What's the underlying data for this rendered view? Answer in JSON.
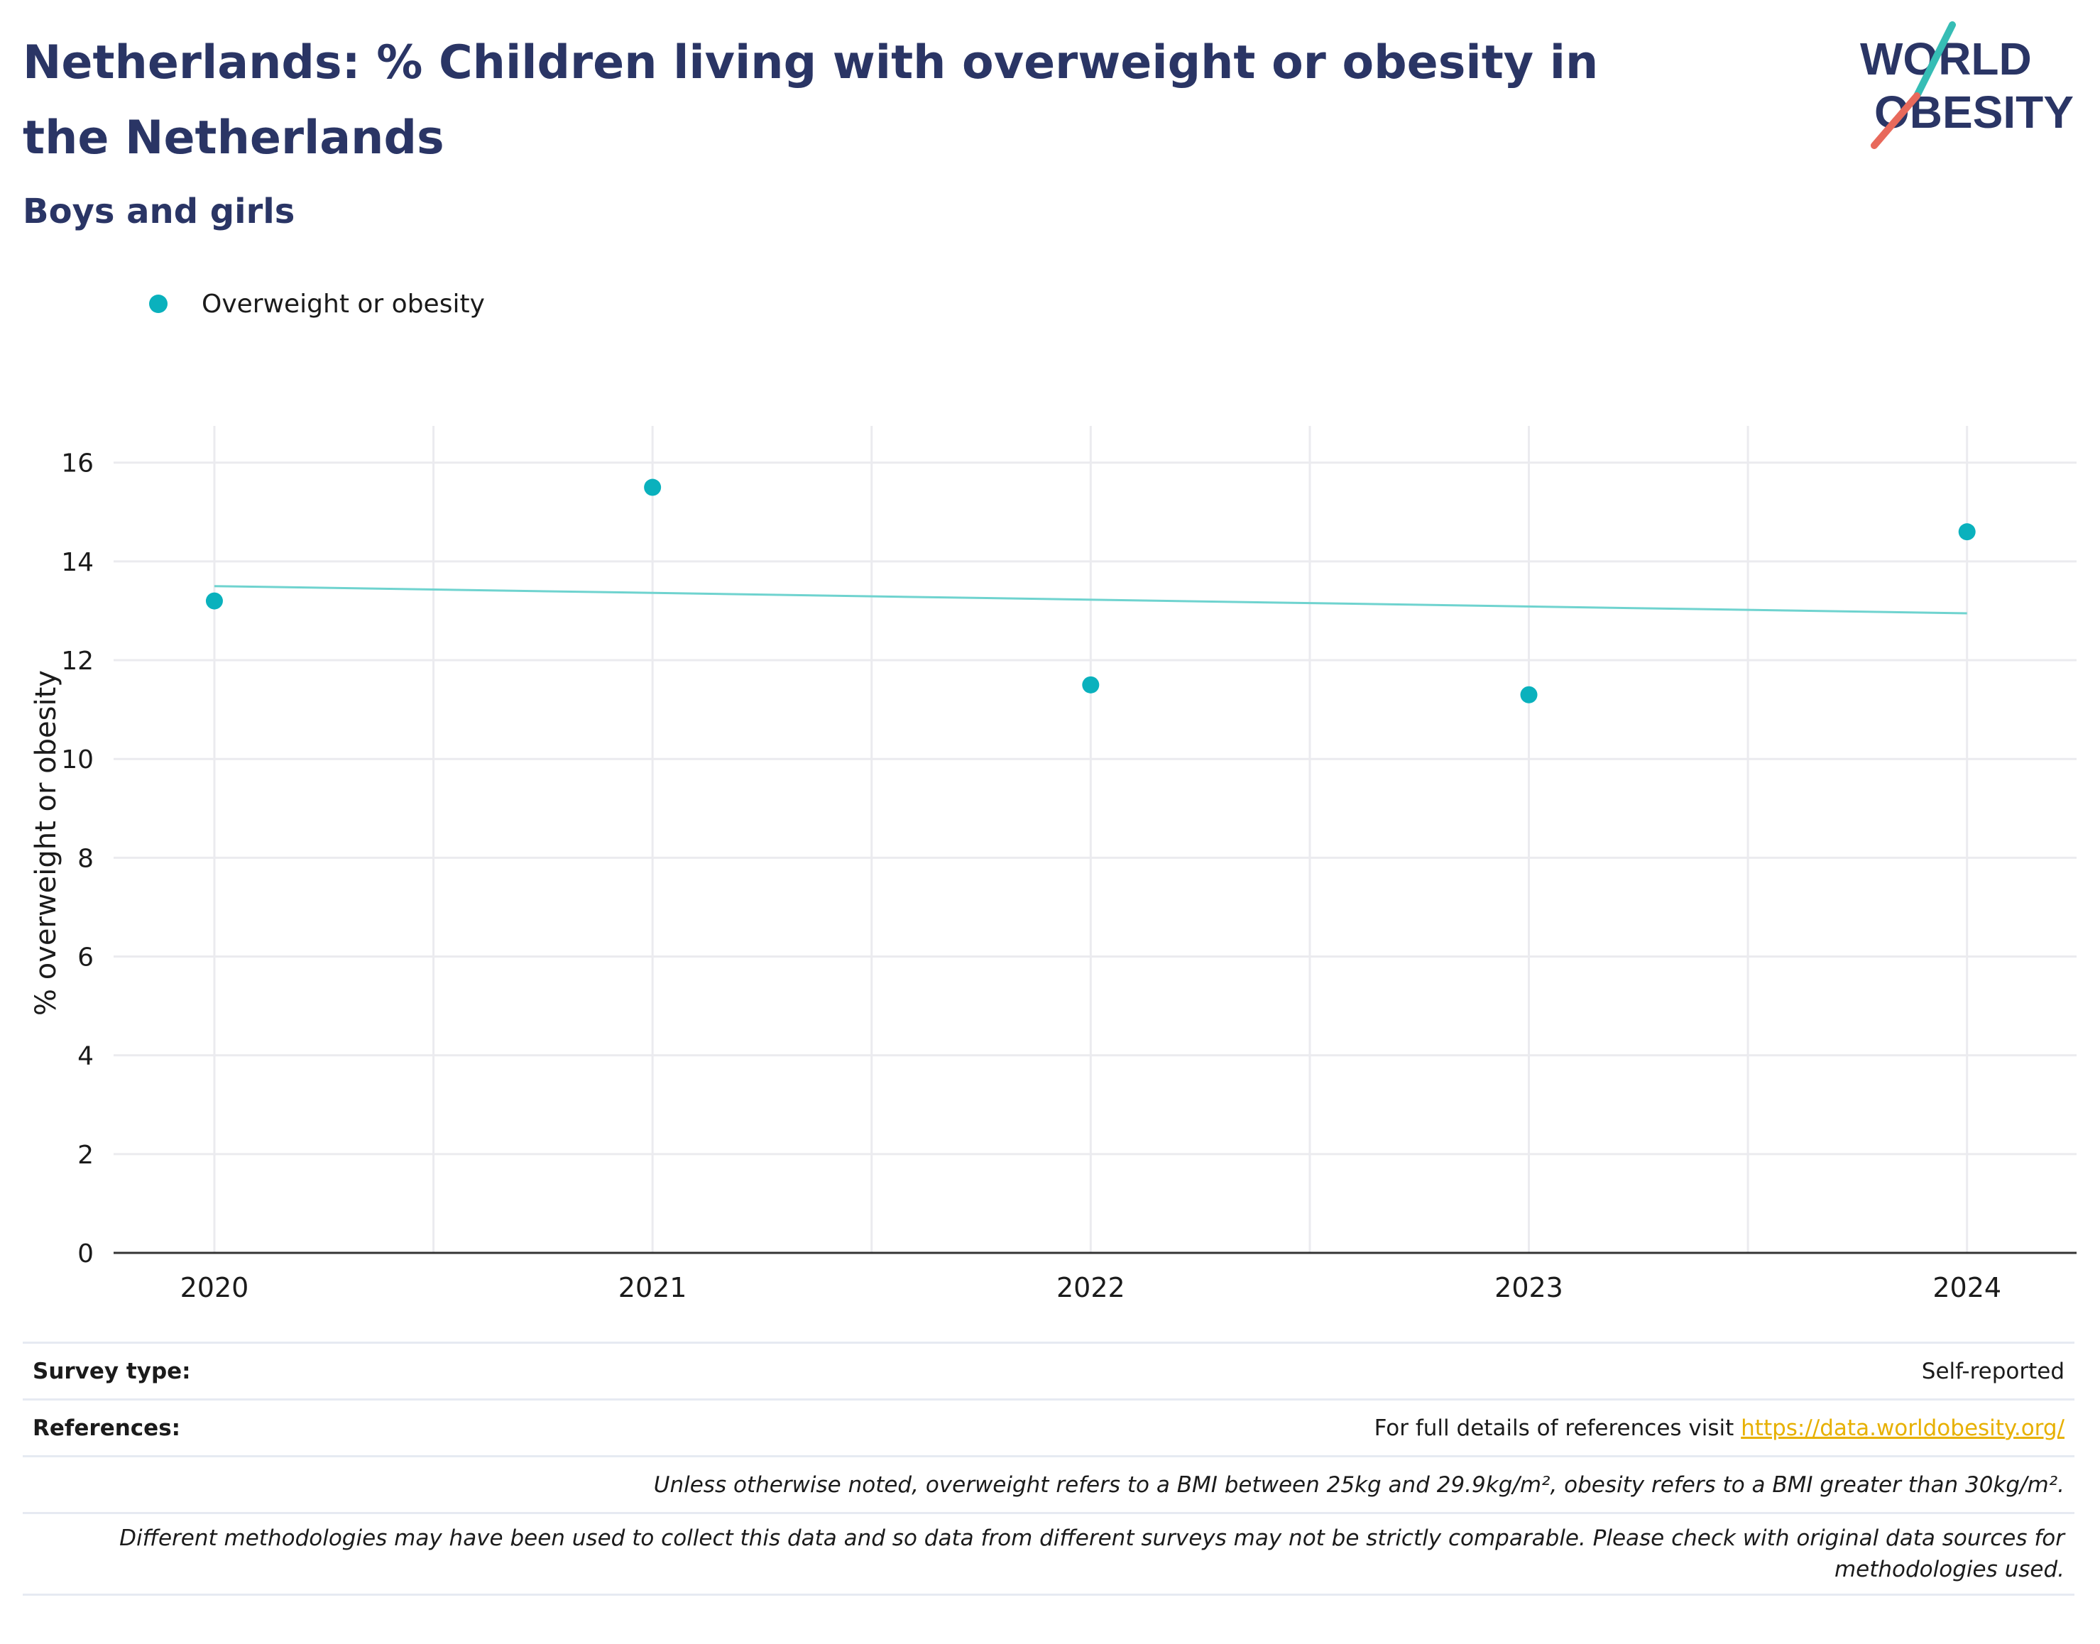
{
  "header": {
    "title": "Netherlands: % Children living with overweight or obesity in the Netherlands",
    "subtitle": "Boys and girls"
  },
  "logo": {
    "line1": "WORLD",
    "line2": "OBESITY",
    "text_color": "#2a3565",
    "accent_teal": "#36bdb5",
    "accent_red": "#e8695b"
  },
  "legend": {
    "label": "Overweight or obesity",
    "color": "#0ab1bd"
  },
  "chart_data": {
    "type": "scatter",
    "series": [
      {
        "name": "Overweight or obesity",
        "color": "#0ab1bd",
        "x": [
          2020,
          2021,
          2022,
          2023,
          2024
        ],
        "y": [
          13.2,
          15.5,
          11.5,
          11.3,
          14.6
        ]
      }
    ],
    "trendline": {
      "color": "#6fd3cf",
      "x": [
        2020,
        2024
      ],
      "y": [
        13.5,
        12.95
      ]
    },
    "xticks": [
      "2020",
      "2021",
      "2022",
      "2023",
      "2024"
    ],
    "yticks": [
      "0",
      "2",
      "4",
      "6",
      "8",
      "10",
      "12",
      "14",
      "16"
    ],
    "xlim": [
      2019.77,
      2024.25
    ],
    "ylim": [
      0,
      16.6
    ],
    "xlabel": "",
    "ylabel": "% overweight or obesity",
    "grid": true
  },
  "footer": {
    "survey_label": "Survey type:",
    "survey_value": "Self-reported",
    "references_label": "References:",
    "references_text": "For full details of references visit",
    "references_link": "https://data.worldobesity.org/",
    "note_bmi": "Unless otherwise noted, overweight refers to a BMI between 25kg and 29.9kg/m², obesity refers to a BMI greater than 30kg/m².",
    "note_methods": "Different methodologies may have been used to collect this data and so data from different surveys may not be strictly comparable. Please check with original data sources for methodologies used."
  }
}
